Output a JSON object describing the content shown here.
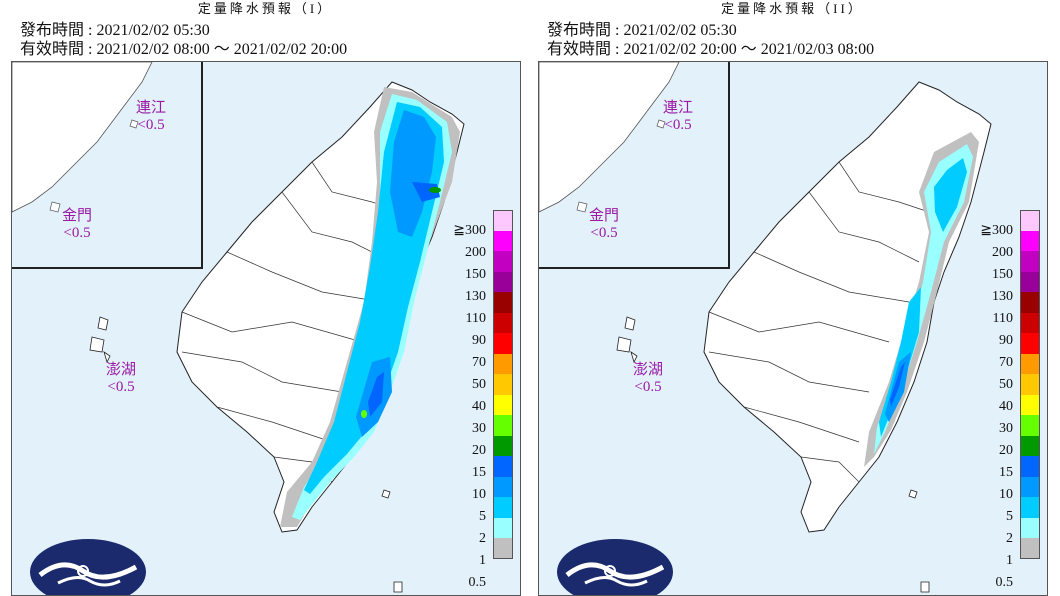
{
  "panels": [
    {
      "title": "定量降水預報（I）",
      "issue": "發布時間 : 2021/02/02 05:30",
      "valid": "有效時間 : 2021/02/02 08:00 ～ 2021/02/02 20:00",
      "insets": {
        "matsu_name": "連江",
        "matsu_value": "<0.5",
        "kinmen_name": "金門",
        "kinmen_value": "<0.5",
        "penghu_name": "澎湖",
        "penghu_value": "<0.5"
      }
    },
    {
      "title": "定量降水預報（II）",
      "issue": "發布時間 : 2021/02/02 05:30",
      "valid": "有效時間 : 2021/02/02 20:00 ～ 2021/02/03 08:00",
      "insets": {
        "matsu_name": "連江",
        "matsu_value": "<0.5",
        "kinmen_name": "金門",
        "kinmen_value": "<0.5",
        "penghu_name": "澎湖",
        "penghu_value": "<0.5"
      }
    }
  ],
  "legend": {
    "ticks": [
      "≧300",
      "200",
      "150",
      "130",
      "110",
      "90",
      "70",
      "50",
      "40",
      "30",
      "20",
      "15",
      "10",
      "5",
      "2",
      "1",
      "0.5"
    ],
    "colors": [
      "#fdc8fd",
      "#fd00fd",
      "#c100c1",
      "#990099",
      "#990000",
      "#cc0000",
      "#ff0000",
      "#ff9a00",
      "#ffc800",
      "#ffff00",
      "#66ff00",
      "#009900",
      "#0066ff",
      "#0099ff",
      "#00ccff",
      "#99ffff",
      "#c0c0c0"
    ]
  }
}
